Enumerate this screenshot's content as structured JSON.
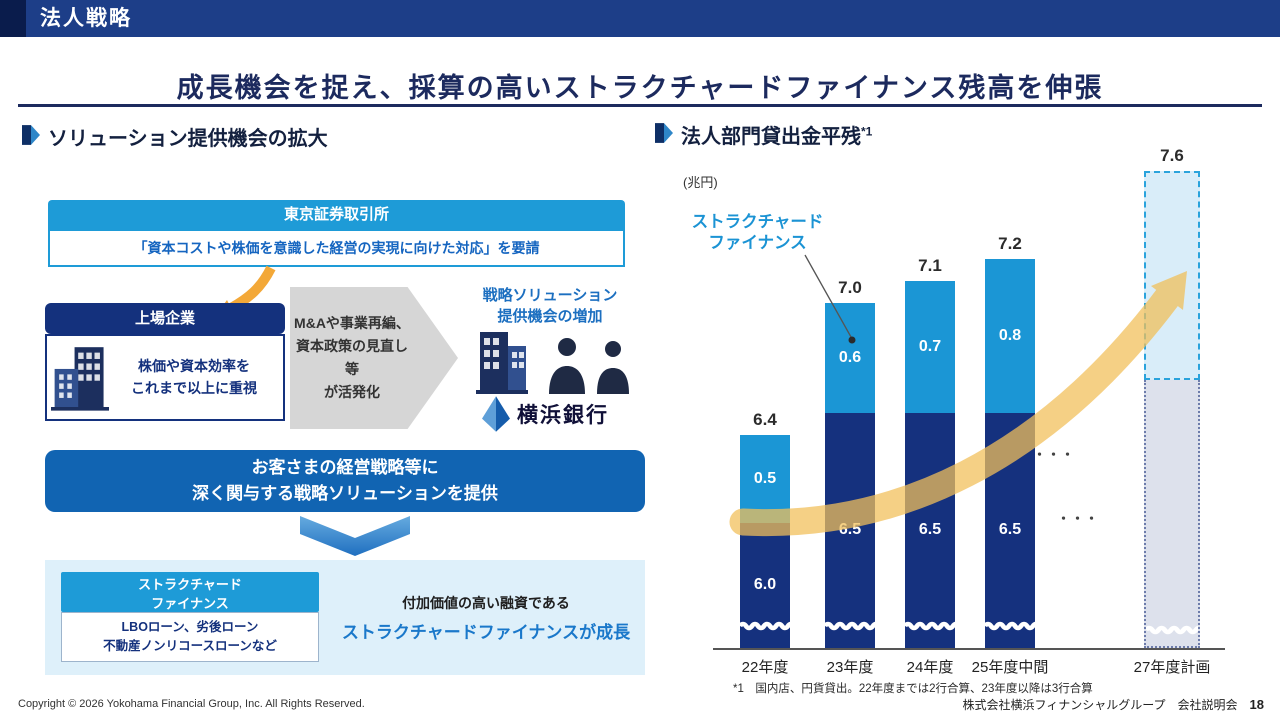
{
  "header": {
    "title": "法人戦略"
  },
  "main_title": "成長機会を捉え、採算の高いストラクチャードファイナンス残高を伸張",
  "left_section": {
    "heading": "ソリューション提供機会の拡大",
    "tse_box": {
      "header": "東京証券取引所",
      "body": "「資本コストや株価を意識した経営の実現に向けた対応」を要請"
    },
    "listed_box": {
      "header": "上場企業",
      "line1": "株価や資本効率を",
      "line2": "これまで以上に重視"
    },
    "gray_arrow": {
      "line1": "M&Aや事業再編、",
      "line2": "資本政策の見直し等",
      "line3": "が活発化"
    },
    "opportunity": {
      "line1": "戦略ソリューション",
      "line2": "提供機会の増加"
    },
    "bank_name": "横浜銀行",
    "strategy_box": {
      "line1": "お客さまの経営戦略等に",
      "line2": "深く関与する戦略ソリューションを提供"
    },
    "sf_panel": {
      "header_line1": "ストラクチャード",
      "header_line2": "ファイナンス",
      "body_line1": "LBOローン、劣後ローン",
      "body_line2": "不動産ノンリコースローンなど",
      "desc_line1": "付加価値の高い融資である",
      "desc_line2": "ストラクチャードファイナンスが成長"
    }
  },
  "right_section": {
    "heading": "法人部門貸出金平残",
    "heading_sup": "*1",
    "unit": "(兆円)",
    "annotation_line1": "ストラクチャード",
    "annotation_line2": "ファイナンス",
    "dots": "・・・",
    "footnote": "*1　国内店、円貨貸出。22年度までは2行合算、23年度以降は3行合算"
  },
  "chart_data": {
    "type": "bar",
    "variant": "stacked",
    "title": "法人部門貸出金平残*1",
    "ylabel": "兆円",
    "categories": [
      "22年度",
      "23年度",
      "24年度",
      "25年度中間",
      "27年度計画"
    ],
    "series": [
      {
        "name": "base_lending",
        "color": "#15317e",
        "values": [
          6.0,
          6.5,
          6.5,
          6.5,
          null
        ]
      },
      {
        "name": "structured_finance",
        "color": "#1b96d5",
        "values": [
          0.5,
          0.6,
          0.7,
          0.8,
          null
        ]
      }
    ],
    "totals": [
      6.4,
      7.0,
      7.1,
      7.2,
      7.6
    ],
    "projected_category": "27年度計画",
    "axis_break": true,
    "annotation_target": "structured_finance",
    "legend": "none"
  },
  "footer": {
    "copyright": "Copyright © 2026 Yokohama Financial Group, Inc. All Rights Reserved.",
    "company": "株式会社横浜フィナンシャルグループ　会社説明会",
    "page_number": "18"
  }
}
